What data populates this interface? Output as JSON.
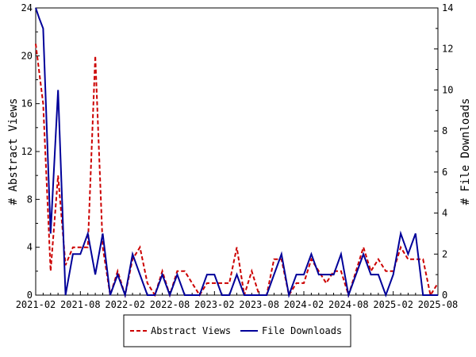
{
  "chart_data": {
    "type": "line",
    "x_axis": {
      "tick_labels": [
        "2021-02",
        "2021-08",
        "2022-02",
        "2022-08",
        "2023-02",
        "2023-08",
        "2024-02",
        "2024-08",
        "2025-02",
        "2025-08"
      ],
      "range": [
        "2021-02",
        "2025-08"
      ]
    },
    "y_left": {
      "label": "# Abstract Views",
      "range": [
        0,
        24
      ],
      "ticks": [
        0,
        4,
        8,
        12,
        16,
        20,
        24
      ]
    },
    "y_right": {
      "label": "# File Downloads",
      "range": [
        0,
        14
      ],
      "ticks": [
        0,
        2,
        4,
        6,
        8,
        10,
        12,
        14
      ]
    },
    "grid": false,
    "legend": {
      "position": "bottom"
    },
    "series": [
      {
        "name": "Abstract Views",
        "axis": "left",
        "color": "#cc0000",
        "style": "dashed",
        "points": [
          [
            "2021-02-01",
            21
          ],
          [
            "2021-03-01",
            16
          ],
          [
            "2021-04-01",
            2
          ],
          [
            "2021-05-01",
            10
          ],
          [
            "2021-06-01",
            2.5
          ],
          [
            "2021-07-01",
            4
          ],
          [
            "2021-08-01",
            4
          ],
          [
            "2021-09-01",
            4
          ],
          [
            "2021-10-01",
            20
          ],
          [
            "2021-11-01",
            4
          ],
          [
            "2021-12-01",
            0
          ],
          [
            "2022-01-01",
            2
          ],
          [
            "2022-02-01",
            0
          ],
          [
            "2022-03-01",
            3
          ],
          [
            "2022-04-01",
            4
          ],
          [
            "2022-05-01",
            1
          ],
          [
            "2022-06-01",
            0
          ],
          [
            "2022-07-01",
            2
          ],
          [
            "2022-08-01",
            0
          ],
          [
            "2022-09-01",
            2
          ],
          [
            "2022-10-01",
            2
          ],
          [
            "2022-11-01",
            1
          ],
          [
            "2022-12-01",
            0
          ],
          [
            "2023-01-01",
            1
          ],
          [
            "2023-02-01",
            1
          ],
          [
            "2023-03-01",
            1
          ],
          [
            "2023-04-01",
            1
          ],
          [
            "2023-05-01",
            4
          ],
          [
            "2023-06-01",
            0
          ],
          [
            "2023-07-01",
            2
          ],
          [
            "2023-08-01",
            0
          ],
          [
            "2023-09-01",
            0
          ],
          [
            "2023-10-01",
            3
          ],
          [
            "2023-11-01",
            3
          ],
          [
            "2023-12-01",
            0
          ],
          [
            "2024-01-01",
            1
          ],
          [
            "2024-02-01",
            1
          ],
          [
            "2024-03-01",
            3
          ],
          [
            "2024-04-01",
            2
          ],
          [
            "2024-05-01",
            1
          ],
          [
            "2024-06-01",
            2
          ],
          [
            "2024-07-01",
            2
          ],
          [
            "2024-08-01",
            0
          ],
          [
            "2024-09-01",
            2
          ],
          [
            "2024-10-01",
            4
          ],
          [
            "2024-11-01",
            2
          ],
          [
            "2024-12-01",
            3
          ],
          [
            "2025-01-01",
            2
          ],
          [
            "2025-02-01",
            2
          ],
          [
            "2025-03-01",
            4
          ],
          [
            "2025-04-01",
            3
          ],
          [
            "2025-05-01",
            3
          ],
          [
            "2025-06-01",
            3
          ],
          [
            "2025-07-01",
            0
          ],
          [
            "2025-08-01",
            1
          ]
        ]
      },
      {
        "name": "File Downloads",
        "axis": "right",
        "color": "#000099",
        "style": "solid",
        "points": [
          [
            "2021-02-01",
            14
          ],
          [
            "2021-02-15",
            13.5
          ],
          [
            "2021-03-01",
            13
          ],
          [
            "2021-04-01",
            3
          ],
          [
            "2021-05-01",
            10
          ],
          [
            "2021-06-01",
            0
          ],
          [
            "2021-07-01",
            2
          ],
          [
            "2021-08-01",
            2
          ],
          [
            "2021-09-01",
            3
          ],
          [
            "2021-10-01",
            1
          ],
          [
            "2021-11-01",
            3
          ],
          [
            "2021-12-01",
            0
          ],
          [
            "2022-01-01",
            1
          ],
          [
            "2022-02-01",
            0
          ],
          [
            "2022-03-01",
            2
          ],
          [
            "2022-04-01",
            1
          ],
          [
            "2022-05-01",
            0
          ],
          [
            "2022-06-01",
            0
          ],
          [
            "2022-07-01",
            1
          ],
          [
            "2022-08-01",
            0
          ],
          [
            "2022-09-01",
            1
          ],
          [
            "2022-10-01",
            0
          ],
          [
            "2022-11-01",
            0
          ],
          [
            "2022-12-01",
            0
          ],
          [
            "2023-01-01",
            1
          ],
          [
            "2023-02-01",
            1
          ],
          [
            "2023-03-01",
            0
          ],
          [
            "2023-04-01",
            0
          ],
          [
            "2023-05-01",
            1
          ],
          [
            "2023-06-01",
            0
          ],
          [
            "2023-07-01",
            0
          ],
          [
            "2023-08-01",
            0
          ],
          [
            "2023-09-01",
            0
          ],
          [
            "2023-10-01",
            1
          ],
          [
            "2023-11-01",
            2
          ],
          [
            "2023-12-01",
            0
          ],
          [
            "2024-01-01",
            1
          ],
          [
            "2024-02-01",
            1
          ],
          [
            "2024-03-01",
            2
          ],
          [
            "2024-04-01",
            1
          ],
          [
            "2024-05-01",
            1
          ],
          [
            "2024-06-01",
            1
          ],
          [
            "2024-07-01",
            2
          ],
          [
            "2024-08-01",
            0
          ],
          [
            "2024-09-01",
            1
          ],
          [
            "2024-10-01",
            2
          ],
          [
            "2024-11-01",
            1
          ],
          [
            "2024-12-01",
            1
          ],
          [
            "2025-01-01",
            0
          ],
          [
            "2025-02-01",
            1
          ],
          [
            "2025-03-01",
            3
          ],
          [
            "2025-04-01",
            2
          ],
          [
            "2025-05-01",
            3
          ],
          [
            "2025-06-01",
            0
          ],
          [
            "2025-07-01",
            0
          ],
          [
            "2025-08-01",
            0
          ]
        ]
      }
    ]
  }
}
